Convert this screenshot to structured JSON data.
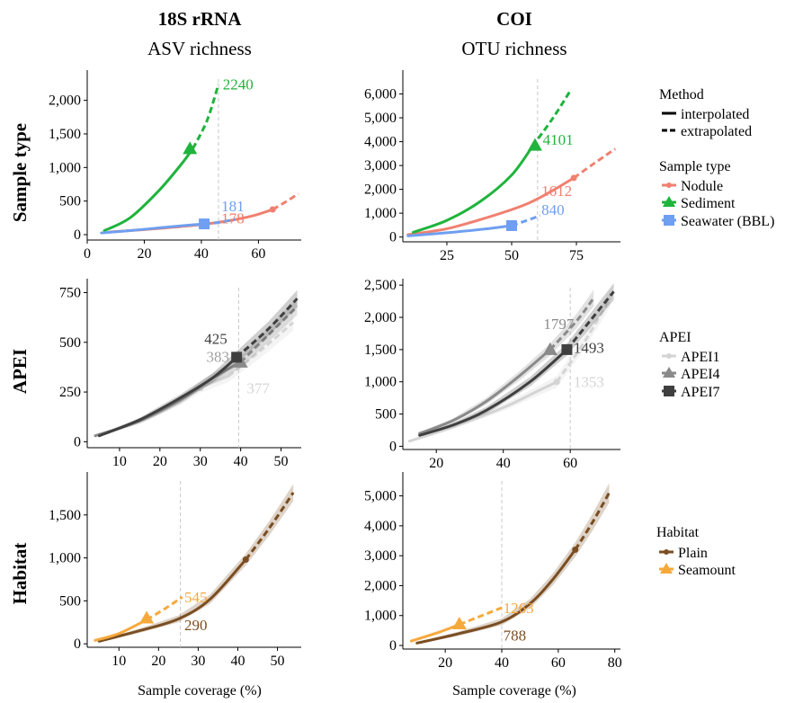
{
  "columns": [
    {
      "title": "18S rRNA",
      "subtitle": "ASV richness"
    },
    {
      "title": "COI",
      "subtitle": "OTU richness"
    }
  ],
  "rows": [
    "Sample type",
    "APEI",
    "Habitat"
  ],
  "xlabel": "Sample coverage (%)",
  "legends": {
    "method": {
      "title": "Method",
      "items": [
        {
          "label": "interpolated",
          "style": "solid"
        },
        {
          "label": "extrapolated",
          "style": "dashed"
        }
      ]
    },
    "sample_type": {
      "title": "Sample type",
      "items": [
        {
          "label": "Nodule",
          "color": "#f08070",
          "shape": "circle"
        },
        {
          "label": "Sediment",
          "color": "#1fb43c",
          "shape": "triangle"
        },
        {
          "label": "Seawater (BBL)",
          "color": "#6f9ff0",
          "shape": "square"
        }
      ]
    },
    "apei": {
      "title": "APEI",
      "items": [
        {
          "label": "APEI1",
          "color": "#d4d4d4",
          "shape": "circle"
        },
        {
          "label": "APEI4",
          "color": "#8a8a8a",
          "shape": "triangle"
        },
        {
          "label": "APEI7",
          "color": "#3f3f3f",
          "shape": "square"
        }
      ]
    },
    "habitat": {
      "title": "Habitat",
      "items": [
        {
          "label": "Plain",
          "color": "#7a4e22",
          "shape": "circle"
        },
        {
          "label": "Seamount",
          "color": "#f6a93b",
          "shape": "triangle"
        }
      ]
    }
  },
  "chart_data": [
    {
      "type": "line",
      "panel": "18S rRNA - Sample type",
      "xlim": [
        0,
        75
      ],
      "ylim": [
        -80,
        2450
      ],
      "xticks": [
        0,
        20,
        40,
        60
      ],
      "xtick_labels": [
        "0",
        "20",
        "40",
        "60"
      ],
      "yticks": [
        0,
        500,
        1000,
        1500,
        2000
      ],
      "ytick_labels": [
        "0",
        "500",
        "1,000",
        "1,500",
        "2,000"
      ],
      "vline": 46,
      "series": [
        {
          "name": "Nodule",
          "color": "#f08070",
          "interp": [
            [
              8,
              40
            ],
            [
              20,
              75
            ],
            [
              30,
              110
            ],
            [
              40,
              150
            ],
            [
              50,
              210
            ],
            [
              58,
              280
            ],
            [
              65,
              375
            ]
          ],
          "extrap": [
            [
              65,
              375
            ],
            [
              70,
              500
            ],
            [
              74,
              610
            ]
          ],
          "marker": [
            65,
            375
          ],
          "marker_shape": "circle"
        },
        {
          "name": "Sediment",
          "color": "#1fb43c",
          "interp": [
            [
              6,
              60
            ],
            [
              15,
              250
            ],
            [
              25,
              650
            ],
            [
              33,
              1050
            ],
            [
              37,
              1280
            ]
          ],
          "extrap": [
            [
              37,
              1280
            ],
            [
              42,
              1700
            ],
            [
              46,
              2240
            ]
          ],
          "marker": [
            36,
            1280
          ],
          "marker_shape": "triangle"
        },
        {
          "name": "Seawater (BBL)",
          "color": "#6f9ff0",
          "interp": [
            [
              5,
              25
            ],
            [
              15,
              60
            ],
            [
              25,
              100
            ],
            [
              35,
              140
            ],
            [
              41,
              160
            ]
          ],
          "extrap": [
            [
              41,
              160
            ],
            [
              46,
              181
            ],
            [
              52,
              230
            ]
          ],
          "marker": [
            41,
            160
          ],
          "marker_shape": "square"
        }
      ],
      "annotations": [
        {
          "text": "2240",
          "x": 47.5,
          "y": 2240,
          "color": "#1fb43c"
        },
        {
          "text": "181",
          "x": 47,
          "y": 430,
          "color": "#6f9ff0"
        },
        {
          "text": "178",
          "x": 47,
          "y": 250,
          "color": "#f08070"
        }
      ]
    },
    {
      "type": "line",
      "panel": "COI - Sample type",
      "xlim": [
        8,
        92
      ],
      "ylim": [
        -200,
        7000
      ],
      "xticks": [
        25,
        50,
        75
      ],
      "xtick_labels": [
        "25",
        "50",
        "75"
      ],
      "yticks": [
        0,
        1000,
        2000,
        3000,
        4000,
        5000,
        6000
      ],
      "ytick_labels": [
        "0",
        "1,000",
        "2,000",
        "3,000",
        "4,000",
        "5,000",
        "6,000"
      ],
      "vline": 60,
      "series": [
        {
          "name": "Nodule",
          "color": "#f08070",
          "interp": [
            [
              10,
              100
            ],
            [
              25,
              350
            ],
            [
              40,
              800
            ],
            [
              55,
              1350
            ],
            [
              65,
              1900
            ],
            [
              74,
              2480
            ]
          ],
          "extrap": [
            [
              74,
              2480
            ],
            [
              82,
              3100
            ],
            [
              90,
              3700
            ]
          ],
          "marker": [
            74,
            2480
          ],
          "marker_shape": "circle"
        },
        {
          "name": "Sediment",
          "color": "#1fb43c",
          "interp": [
            [
              12,
              200
            ],
            [
              25,
              700
            ],
            [
              38,
              1500
            ],
            [
              50,
              2600
            ],
            [
              58,
              3800
            ]
          ],
          "extrap": [
            [
              58,
              3800
            ],
            [
              66,
              5000
            ],
            [
              73,
              6200
            ]
          ],
          "marker": [
            59,
            3850
          ],
          "marker_shape": "triangle"
        },
        {
          "name": "Seawater (BBL)",
          "color": "#6f9ff0",
          "interp": [
            [
              10,
              50
            ],
            [
              25,
              180
            ],
            [
              40,
              340
            ],
            [
              50,
              480
            ]
          ],
          "extrap": [
            [
              50,
              480
            ],
            [
              56,
              700
            ],
            [
              61,
              900
            ]
          ],
          "marker": [
            50,
            480
          ],
          "marker_shape": "square"
        }
      ],
      "annotations": [
        {
          "text": "4101",
          "x": 62,
          "y": 4101,
          "color": "#1fb43c"
        },
        {
          "text": "1612",
          "x": 61.5,
          "y": 1950,
          "color": "#f08070"
        },
        {
          "text": "840",
          "x": 61.5,
          "y": 1150,
          "color": "#6f9ff0"
        }
      ]
    },
    {
      "type": "line",
      "panel": "18S rRNA - APEI",
      "xlim": [
        2,
        55
      ],
      "ylim": [
        -30,
        820
      ],
      "xticks": [
        10,
        20,
        30,
        40,
        50
      ],
      "xtick_labels": [
        "10",
        "20",
        "30",
        "40",
        "50"
      ],
      "yticks": [
        0,
        250,
        500,
        750
      ],
      "ytick_labels": [
        "0",
        "250",
        "500",
        "750"
      ],
      "vline": 39.5,
      "series": [
        {
          "name": "APEI1",
          "color": "#d4d4d4",
          "interp": [
            [
              4,
              30
            ],
            [
              15,
              100
            ],
            [
              25,
              200
            ],
            [
              30,
              270
            ],
            [
              37,
              330
            ]
          ],
          "extrap": [
            [
              37,
              330
            ],
            [
              45,
              460
            ],
            [
              53,
              600
            ]
          ],
          "marker": [
            30,
            270
          ],
          "marker_shape": "circle",
          "band": true
        },
        {
          "name": "APEI4",
          "color": "#8a8a8a",
          "interp": [
            [
              4,
              30
            ],
            [
              15,
              105
            ],
            [
              25,
              210
            ],
            [
              33,
              320
            ],
            [
              40,
              400
            ]
          ],
          "extrap": [
            [
              40,
              400
            ],
            [
              47,
              540
            ],
            [
              54,
              680
            ]
          ],
          "marker": [
            40,
            400
          ],
          "marker_shape": "triangle",
          "band": true
        },
        {
          "name": "APEI7",
          "color": "#3f3f3f",
          "interp": [
            [
              5,
              30
            ],
            [
              15,
              110
            ],
            [
              25,
              220
            ],
            [
              33,
              320
            ],
            [
              39,
              425
            ]
          ],
          "extrap": [
            [
              39,
              425
            ],
            [
              47,
              570
            ],
            [
              54,
              720
            ]
          ],
          "marker": [
            39,
            425
          ],
          "marker_shape": "square",
          "band": true
        }
      ],
      "annotations": [
        {
          "text": "425",
          "x": 31,
          "y": 520,
          "color": "#3f3f3f"
        },
        {
          "text": "383",
          "x": 31.5,
          "y": 430,
          "color": "#a0a0a0"
        },
        {
          "text": "377",
          "x": 41.5,
          "y": 270,
          "color": "#d4d4d4"
        }
      ]
    },
    {
      "type": "line",
      "panel": "COI - APEI",
      "xlim": [
        10,
        75
      ],
      "ylim": [
        -50,
        2600
      ],
      "xticks": [
        20,
        40,
        60
      ],
      "xtick_labels": [
        "20",
        "40",
        "60"
      ],
      "yticks": [
        0,
        500,
        1000,
        1500,
        2000,
        2500
      ],
      "ytick_labels": [
        "0",
        "500",
        "1,000",
        "1,500",
        "2,000",
        "2,500"
      ],
      "vline": 60,
      "series": [
        {
          "name": "APEI1",
          "color": "#d4d4d4",
          "interp": [
            [
              12,
              80
            ],
            [
              25,
              300
            ],
            [
              40,
              600
            ],
            [
              50,
              850
            ],
            [
              56,
              1000
            ]
          ],
          "extrap": [
            [
              56,
              1000
            ],
            [
              64,
              1600
            ],
            [
              72,
              2300
            ]
          ],
          "marker": [
            56,
            1000
          ],
          "marker_shape": "circle",
          "band": true
        },
        {
          "name": "APEI4",
          "color": "#8a8a8a",
          "interp": [
            [
              15,
              200
            ],
            [
              25,
              400
            ],
            [
              35,
              700
            ],
            [
              45,
              1100
            ],
            [
              54,
              1500
            ]
          ],
          "extrap": [
            [
              54,
              1500
            ],
            [
              62,
              1950
            ],
            [
              67,
              2300
            ]
          ],
          "marker": [
            54,
            1500
          ],
          "marker_shape": "triangle",
          "band": true
        },
        {
          "name": "APEI7",
          "color": "#3f3f3f",
          "interp": [
            [
              15,
              170
            ],
            [
              25,
              330
            ],
            [
              35,
              560
            ],
            [
              48,
              1000
            ],
            [
              59,
              1500
            ]
          ],
          "extrap": [
            [
              59,
              1500
            ],
            [
              66,
              1950
            ],
            [
              73,
              2400
            ]
          ],
          "marker": [
            59,
            1500
          ],
          "marker_shape": "square",
          "band": true
        }
      ],
      "annotations": [
        {
          "text": "1797",
          "x": 52,
          "y": 1900,
          "color": "#8a8a8a"
        },
        {
          "text": "1493",
          "x": 61,
          "y": 1530,
          "color": "#3f3f3f"
        },
        {
          "text": "1353",
          "x": 61,
          "y": 1000,
          "color": "#d4d4d4"
        }
      ]
    },
    {
      "type": "line",
      "panel": "18S rRNA - Habitat",
      "xlim": [
        2,
        56
      ],
      "ylim": [
        -40,
        2000
      ],
      "xticks": [
        10,
        20,
        30,
        40,
        50
      ],
      "xtick_labels": [
        "10",
        "20",
        "30",
        "40",
        "50"
      ],
      "yticks": [
        0,
        500,
        1000,
        1500
      ],
      "ytick_labels": [
        "0",
        "500",
        "1,000",
        "1,500"
      ],
      "vline": 25.5,
      "series": [
        {
          "name": "Plain",
          "color": "#7a4e22",
          "interp": [
            [
              5,
              30
            ],
            [
              15,
              150
            ],
            [
              25,
              290
            ],
            [
              33,
              520
            ],
            [
              42,
              980
            ]
          ],
          "extrap": [
            [
              42,
              980
            ],
            [
              48,
              1350
            ],
            [
              54,
              1760
            ]
          ],
          "marker": [
            42,
            980
          ],
          "marker_shape": "circle",
          "band": true
        },
        {
          "name": "Seamount",
          "color": "#f6a93b",
          "interp": [
            [
              4,
              40
            ],
            [
              10,
              120
            ],
            [
              17,
              280
            ]
          ],
          "extrap": [
            [
              17,
              280
            ],
            [
              22,
              420
            ],
            [
              26,
              545
            ]
          ],
          "marker": [
            17,
            300
          ],
          "marker_shape": "triangle"
        }
      ],
      "annotations": [
        {
          "text": "545",
          "x": 26.5,
          "y": 545,
          "color": "#f6a93b"
        },
        {
          "text": "290",
          "x": 26.5,
          "y": 220,
          "color": "#7a4e22"
        }
      ]
    },
    {
      "type": "line",
      "panel": "COI - Habitat",
      "xlim": [
        5,
        82
      ],
      "ylim": [
        -120,
        5800
      ],
      "xticks": [
        20,
        40,
        60,
        80
      ],
      "xtick_labels": [
        "20",
        "40",
        "60",
        "80"
      ],
      "yticks": [
        0,
        1000,
        2000,
        3000,
        4000,
        5000
      ],
      "ytick_labels": [
        "0",
        "1,000",
        "2,000",
        "3,000",
        "4,000",
        "5,000"
      ],
      "vline": 40,
      "series": [
        {
          "name": "Plain",
          "color": "#7a4e22",
          "interp": [
            [
              10,
              80
            ],
            [
              25,
              400
            ],
            [
              40,
              790
            ],
            [
              50,
              1400
            ],
            [
              58,
              2200
            ],
            [
              66,
              3200
            ]
          ],
          "extrap": [
            [
              66,
              3200
            ],
            [
              72,
              4100
            ],
            [
              78,
              5100
            ]
          ],
          "marker": [
            66,
            3200
          ],
          "marker_shape": "circle",
          "band": true
        },
        {
          "name": "Seamount",
          "color": "#f6a93b",
          "interp": [
            [
              8,
              150
            ],
            [
              18,
              450
            ],
            [
              25,
              700
            ]
          ],
          "extrap": [
            [
              25,
              700
            ],
            [
              33,
              1000
            ],
            [
              40,
              1263
            ]
          ],
          "marker": [
            25,
            720
          ],
          "marker_shape": "triangle"
        }
      ],
      "annotations": [
        {
          "text": "1263",
          "x": 40.5,
          "y": 1263,
          "color": "#f6a93b"
        },
        {
          "text": "788",
          "x": 40.5,
          "y": 350,
          "color": "#7a4e22"
        }
      ]
    }
  ]
}
